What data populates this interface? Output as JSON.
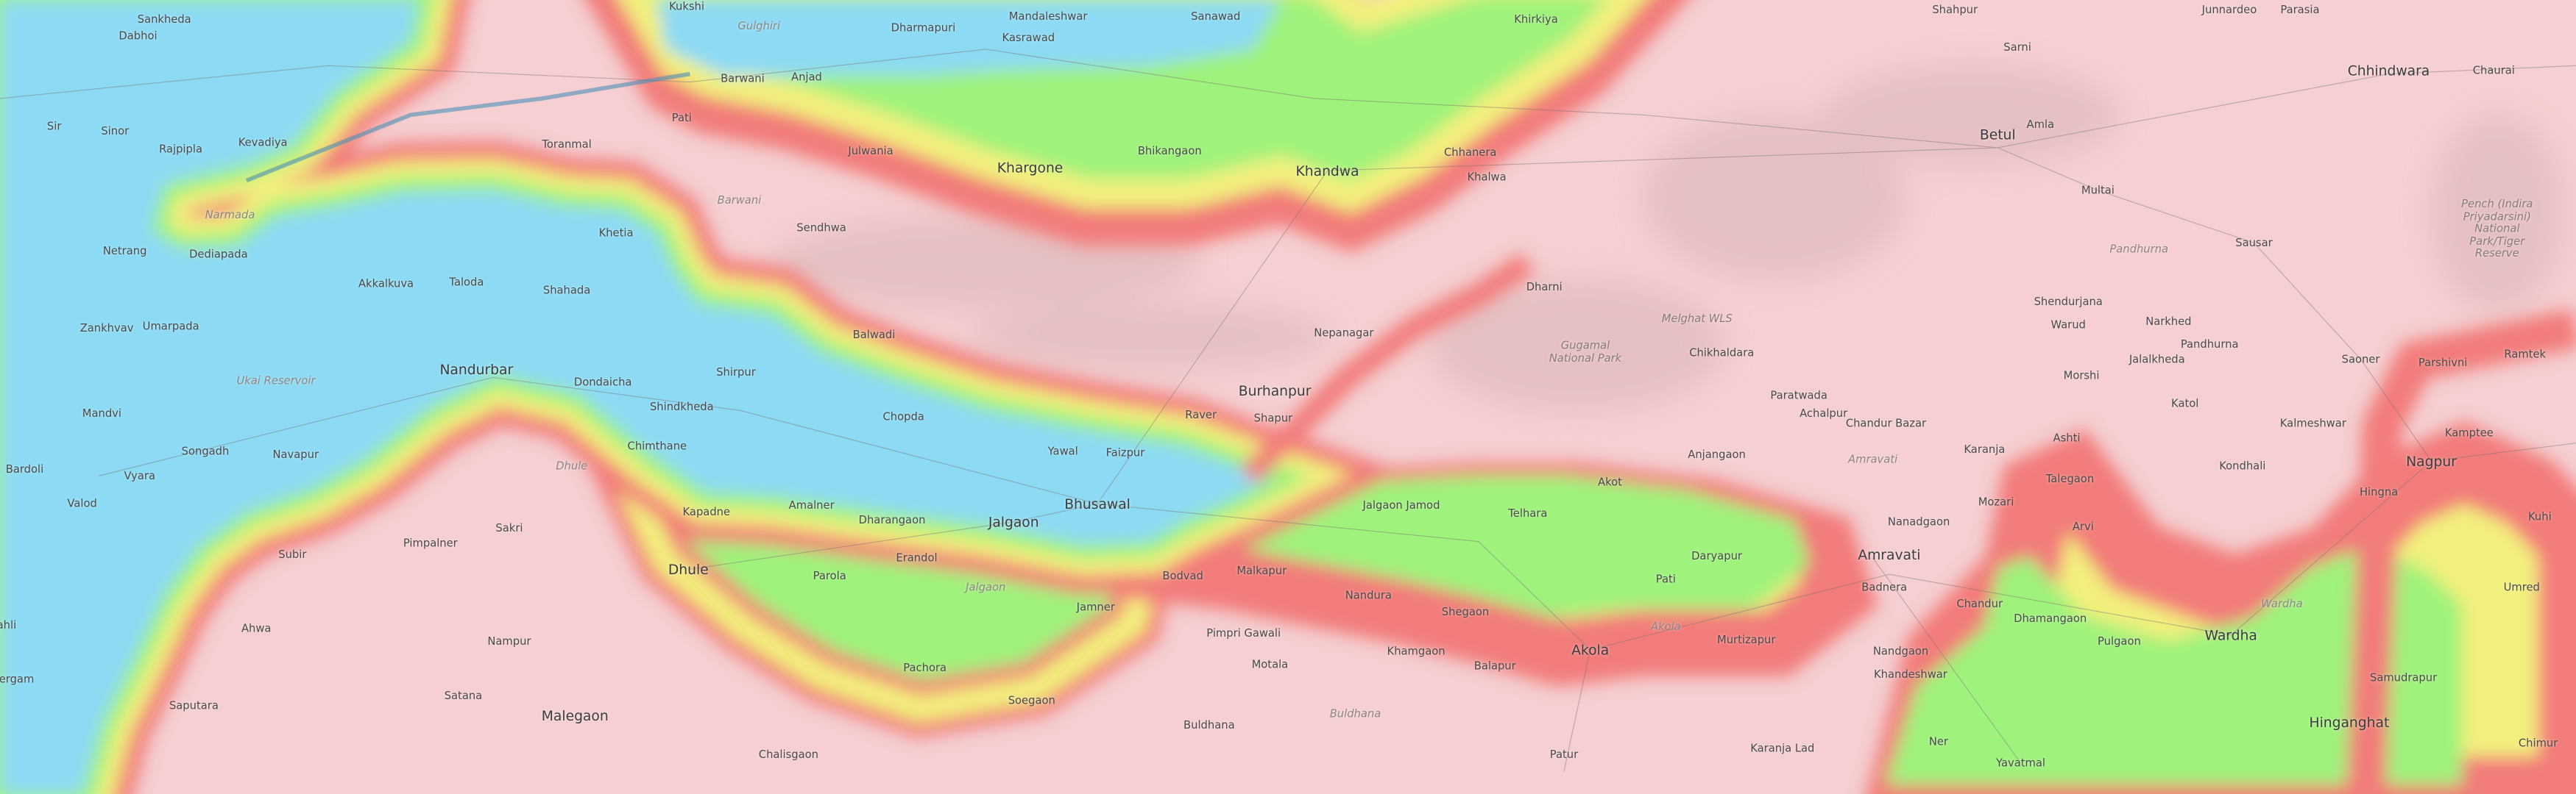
{
  "map": {
    "type": "topographic elevation map",
    "colors": {
      "lowland": "#8cdaf4",
      "low": "#9ff27c",
      "mid": "#f2f07c",
      "high": "#f27c7a",
      "upland": "#f5cfd1"
    },
    "places": [
      "Sankheda",
      "Dabhoi",
      "Kukshi",
      "Dharmapuri",
      "Mandaleshwar",
      "Kasrawad",
      "Sanawad",
      "Khirkiya",
      "Shahpur",
      "Junnardeo",
      "Parasia",
      "Sarni",
      "Chhindwara",
      "Chaurai",
      "Barwani",
      "Anjad",
      "Sir",
      "Sinor",
      "Kevadiya",
      "Rajpipla",
      "Toranmal",
      "Pati",
      "Khargone",
      "Bhikangaon",
      "Khandwa",
      "Chhanera",
      "Khalwa",
      "Betul",
      "Amla",
      "Multai",
      "Barwani",
      "Sendhwa",
      "Netrang",
      "Dediapada",
      "Khetia",
      "Akkalkuva",
      "Taloda",
      "Shahada",
      "Umarpada",
      "Zankhvav",
      "Ukai Reservoir",
      "Balwadi",
      "Nepanagar",
      "Dharni",
      "Melghat WLS",
      "Gugamal National Park",
      "Chikhaldara",
      "Pandhurna",
      "Sausar",
      "Pandhurna",
      "Shendurjana",
      "Warud",
      "Narkhed",
      "Jalalkheda",
      "Saoner",
      "Parshivni",
      "Ramtek",
      "Pench (Indira Priyadarsini) National Park/Tiger Reserve",
      "Morshi",
      "Paratwada",
      "Achalpur",
      "Chandur Bazar",
      "Karanja",
      "Ashti",
      "Katol",
      "Kalmeshwar",
      "Kondhali",
      "Nagpur",
      "Kamptee",
      "Hingna",
      "Kuhi",
      "Umred",
      "Mandvi",
      "Nandurbar",
      "Dondaicha",
      "Shindkheda",
      "Shirpur",
      "Chopda",
      "Burhanpur",
      "Shapur",
      "Raver",
      "Faizpur",
      "Yawal",
      "Songadh",
      "Navapur",
      "Chimthane",
      "Bardoli",
      "Vyara",
      "Valod",
      "Jalgaon Jamod",
      "Telhara",
      "Akot",
      "Anjangaon",
      "Amravati",
      "Mozari",
      "Talegaon",
      "Arvi",
      "Nanadgaon",
      "Amravati",
      "Badnera",
      "Daryapur",
      "Pati",
      "Pimpalner",
      "Sakri",
      "Kapadne",
      "Amalner",
      "Dharangaon",
      "Jalgaon",
      "Bhusawal",
      "Dhule",
      "Parola",
      "Erandol",
      "Bodvad",
      "Malkapur",
      "Nandura",
      "Shegaon",
      "Subir",
      "Ahwa",
      "Nampur",
      "Jamner",
      "Jalgaon",
      "Pimpri Gawali",
      "Motala",
      "Khamgaon",
      "Balapur",
      "Akola",
      "Akola",
      "Murtizapur",
      "Chandur",
      "Dhamangaon",
      "Pulgaon",
      "Wardha",
      "Wardha",
      "Nandgaon",
      "Khandeshwar",
      "Samudrapur",
      "Hinganghat",
      "Saputara",
      "Satana",
      "Malegaon",
      "Pachora",
      "Soegaon",
      "Buldhana",
      "Buldhana",
      "Karanja Lad",
      "Chalisgaon",
      "Patur",
      "Ner",
      "Yavatmal",
      "Chimur",
      "Gulghiri",
      "Julwania",
      "Dhule",
      "Narmada",
      "hergam",
      "ahli"
    ]
  }
}
